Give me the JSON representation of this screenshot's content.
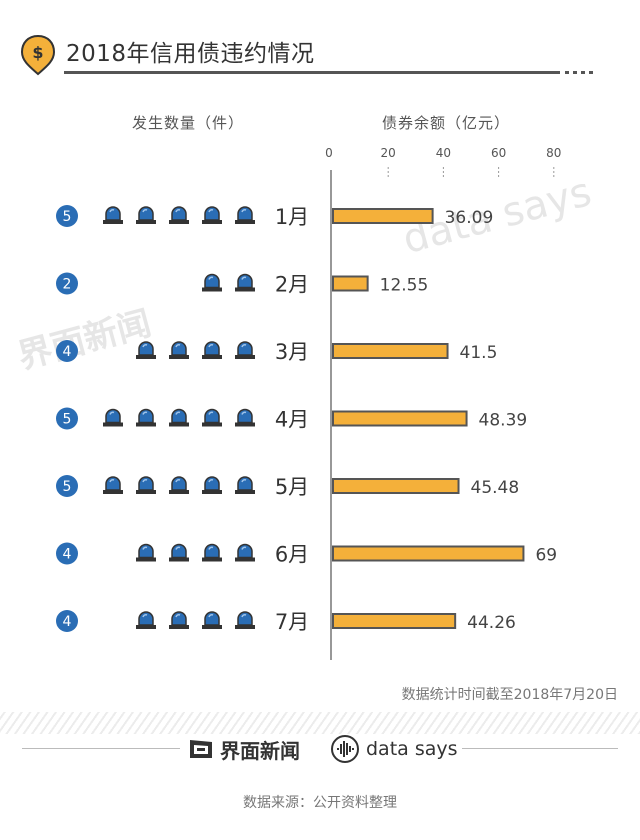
{
  "title": "2018年信用债违约情况",
  "icon": "dollar-pin-icon",
  "accent_color": "#f4b03a",
  "badge_color": "#2a6db5",
  "header": {
    "count_label": "发生数量（件）",
    "amount_label": "债券余额（亿元）"
  },
  "note": "数据统计时间截至2018年7月20日",
  "footer": {
    "brand_left": "界面新闻",
    "brand_right": "data says",
    "source": "数据来源：公开资料整理"
  },
  "watermark": {
    "left": "界面新闻",
    "right": "data says"
  },
  "chart_data": {
    "type": "bar",
    "orientation": "horizontal",
    "categories": [
      "1月",
      "2月",
      "3月",
      "4月",
      "5月",
      "6月",
      "7月"
    ],
    "series": [
      {
        "values": [
          36.09,
          12.55,
          41.5,
          48.39,
          45.48,
          69,
          44.26
        ]
      },
      {
        "values": [
          5,
          2,
          4,
          5,
          5,
          4,
          4
        ]
      }
    ],
    "value_labels": [
      "36.09",
      "12.55",
      "41.5",
      "48.39",
      "45.48",
      "69",
      "44.26"
    ],
    "xticks": [
      0,
      20,
      40,
      60,
      80
    ],
    "xlim": [
      0,
      80
    ],
    "grid": false
  }
}
